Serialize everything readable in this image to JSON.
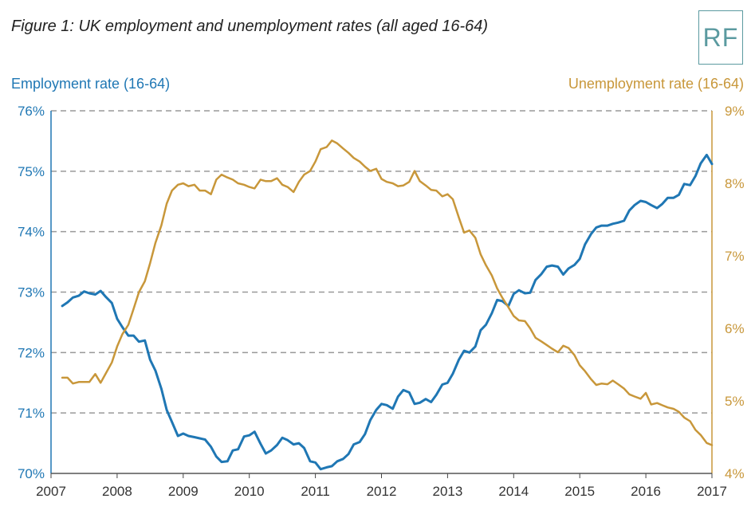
{
  "title": "Figure 1: UK employment and unemployment rates (all aged 16-64)",
  "logo_text": "RF",
  "colors": {
    "employment": "#1f77b4",
    "unemployment": "#c8973a",
    "grid": "#999999",
    "axis": "#1f77b4"
  },
  "chart_data": {
    "type": "line",
    "x_ticks": [
      "2007",
      "2008",
      "2009",
      "2010",
      "2011",
      "2012",
      "2013",
      "2014",
      "2015",
      "2016",
      "2017"
    ],
    "xlim": [
      2007,
      2017
    ],
    "grid": true,
    "left_axis": {
      "label": "Employment rate (16-64)",
      "ylim": [
        70,
        76
      ],
      "ticks": [
        "70%",
        "71%",
        "72%",
        "73%",
        "74%",
        "75%",
        "76%"
      ]
    },
    "right_axis": {
      "label": "Unemployment rate (16-64)",
      "ylim": [
        4,
        9
      ],
      "ticks": [
        "4%",
        "5%",
        "6%",
        "7%",
        "8%",
        "9%"
      ]
    },
    "series": [
      {
        "axis": "left",
        "points": [
          [
            2007.17,
            72.77
          ],
          [
            2007.25,
            72.83
          ],
          [
            2007.33,
            72.91
          ],
          [
            2007.42,
            72.94
          ],
          [
            2007.5,
            73.01
          ],
          [
            2007.58,
            72.98
          ],
          [
            2007.67,
            72.96
          ],
          [
            2007.75,
            73.02
          ],
          [
            2007.83,
            72.92
          ],
          [
            2007.92,
            72.82
          ],
          [
            2008.0,
            72.56
          ],
          [
            2008.08,
            72.42
          ],
          [
            2008.17,
            72.28
          ],
          [
            2008.25,
            72.28
          ],
          [
            2008.33,
            72.18
          ],
          [
            2008.42,
            72.2
          ],
          [
            2008.5,
            71.88
          ],
          [
            2008.58,
            71.7
          ],
          [
            2008.67,
            71.4
          ],
          [
            2008.75,
            71.05
          ],
          [
            2008.83,
            70.85
          ],
          [
            2008.92,
            70.62
          ],
          [
            2009.0,
            70.66
          ],
          [
            2009.08,
            70.62
          ],
          [
            2009.17,
            70.6
          ],
          [
            2009.25,
            70.58
          ],
          [
            2009.33,
            70.56
          ],
          [
            2009.42,
            70.44
          ],
          [
            2009.5,
            70.28
          ],
          [
            2009.58,
            70.19
          ],
          [
            2009.67,
            70.2
          ],
          [
            2009.75,
            70.38
          ],
          [
            2009.83,
            70.4
          ],
          [
            2009.92,
            70.61
          ],
          [
            2010.0,
            70.63
          ],
          [
            2010.08,
            70.69
          ],
          [
            2010.17,
            70.49
          ],
          [
            2010.25,
            70.33
          ],
          [
            2010.33,
            70.38
          ],
          [
            2010.42,
            70.47
          ],
          [
            2010.5,
            70.59
          ],
          [
            2010.58,
            70.55
          ],
          [
            2010.67,
            70.48
          ],
          [
            2010.75,
            70.5
          ],
          [
            2010.83,
            70.42
          ],
          [
            2010.92,
            70.2
          ],
          [
            2011.0,
            70.18
          ],
          [
            2011.08,
            70.07
          ],
          [
            2011.17,
            70.1
          ],
          [
            2011.25,
            70.12
          ],
          [
            2011.33,
            70.2
          ],
          [
            2011.42,
            70.24
          ],
          [
            2011.5,
            70.32
          ],
          [
            2011.58,
            70.48
          ],
          [
            2011.67,
            70.52
          ],
          [
            2011.75,
            70.65
          ],
          [
            2011.83,
            70.88
          ],
          [
            2011.92,
            71.05
          ],
          [
            2012.0,
            71.15
          ],
          [
            2012.08,
            71.13
          ],
          [
            2012.17,
            71.07
          ],
          [
            2012.25,
            71.27
          ],
          [
            2012.33,
            71.38
          ],
          [
            2012.42,
            71.34
          ],
          [
            2012.5,
            71.15
          ],
          [
            2012.58,
            71.17
          ],
          [
            2012.67,
            71.23
          ],
          [
            2012.75,
            71.18
          ],
          [
            2012.83,
            71.3
          ],
          [
            2012.92,
            71.47
          ],
          [
            2013.0,
            71.5
          ],
          [
            2013.08,
            71.65
          ],
          [
            2013.17,
            71.88
          ],
          [
            2013.25,
            72.03
          ],
          [
            2013.33,
            72.0
          ],
          [
            2013.42,
            72.1
          ],
          [
            2013.5,
            72.37
          ],
          [
            2013.58,
            72.46
          ],
          [
            2013.67,
            72.65
          ],
          [
            2013.75,
            72.87
          ],
          [
            2013.83,
            72.85
          ],
          [
            2013.92,
            72.77
          ],
          [
            2014.0,
            72.97
          ],
          [
            2014.08,
            73.03
          ],
          [
            2014.17,
            72.98
          ],
          [
            2014.25,
            72.99
          ],
          [
            2014.33,
            73.2
          ],
          [
            2014.42,
            73.3
          ],
          [
            2014.5,
            73.42
          ],
          [
            2014.58,
            73.44
          ],
          [
            2014.67,
            73.42
          ],
          [
            2014.75,
            73.29
          ],
          [
            2014.83,
            73.39
          ],
          [
            2014.92,
            73.45
          ],
          [
            2015.0,
            73.55
          ],
          [
            2015.08,
            73.79
          ],
          [
            2015.17,
            73.96
          ],
          [
            2015.25,
            74.07
          ],
          [
            2015.33,
            74.1
          ],
          [
            2015.42,
            74.1
          ],
          [
            2015.5,
            74.13
          ],
          [
            2015.58,
            74.15
          ],
          [
            2015.67,
            74.18
          ],
          [
            2015.75,
            74.35
          ],
          [
            2015.83,
            74.44
          ],
          [
            2015.92,
            74.51
          ],
          [
            2016.0,
            74.49
          ],
          [
            2016.08,
            74.44
          ],
          [
            2016.17,
            74.39
          ],
          [
            2016.25,
            74.46
          ],
          [
            2016.33,
            74.56
          ],
          [
            2016.42,
            74.56
          ],
          [
            2016.5,
            74.61
          ],
          [
            2016.58,
            74.79
          ],
          [
            2016.67,
            74.77
          ],
          [
            2016.75,
            74.92
          ],
          [
            2016.83,
            75.13
          ],
          [
            2016.92,
            75.27
          ],
          [
            2017.0,
            75.12
          ]
        ]
      },
      {
        "axis": "right",
        "points": [
          [
            2007.17,
            5.32
          ],
          [
            2007.25,
            5.32
          ],
          [
            2007.33,
            5.24
          ],
          [
            2007.42,
            5.26
          ],
          [
            2007.5,
            5.26
          ],
          [
            2007.58,
            5.26
          ],
          [
            2007.67,
            5.37
          ],
          [
            2007.75,
            5.25
          ],
          [
            2007.83,
            5.38
          ],
          [
            2007.92,
            5.53
          ],
          [
            2008.0,
            5.75
          ],
          [
            2008.08,
            5.92
          ],
          [
            2008.17,
            6.05
          ],
          [
            2008.25,
            6.27
          ],
          [
            2008.33,
            6.5
          ],
          [
            2008.42,
            6.65
          ],
          [
            2008.5,
            6.9
          ],
          [
            2008.58,
            7.18
          ],
          [
            2008.67,
            7.42
          ],
          [
            2008.75,
            7.72
          ],
          [
            2008.83,
            7.9
          ],
          [
            2008.92,
            7.98
          ],
          [
            2009.0,
            8.0
          ],
          [
            2009.08,
            7.96
          ],
          [
            2009.17,
            7.98
          ],
          [
            2009.25,
            7.9
          ],
          [
            2009.33,
            7.9
          ],
          [
            2009.42,
            7.85
          ],
          [
            2009.5,
            8.05
          ],
          [
            2009.58,
            8.12
          ],
          [
            2009.67,
            8.08
          ],
          [
            2009.75,
            8.05
          ],
          [
            2009.83,
            8.0
          ],
          [
            2009.92,
            7.98
          ],
          [
            2010.0,
            7.95
          ],
          [
            2010.08,
            7.93
          ],
          [
            2010.17,
            8.05
          ],
          [
            2010.25,
            8.03
          ],
          [
            2010.33,
            8.03
          ],
          [
            2010.42,
            8.07
          ],
          [
            2010.5,
            7.98
          ],
          [
            2010.58,
            7.95
          ],
          [
            2010.67,
            7.88
          ],
          [
            2010.75,
            8.02
          ],
          [
            2010.83,
            8.12
          ],
          [
            2010.92,
            8.17
          ],
          [
            2011.0,
            8.3
          ],
          [
            2011.08,
            8.47
          ],
          [
            2011.17,
            8.5
          ],
          [
            2011.25,
            8.59
          ],
          [
            2011.33,
            8.55
          ],
          [
            2011.42,
            8.48
          ],
          [
            2011.5,
            8.42
          ],
          [
            2011.58,
            8.35
          ],
          [
            2011.67,
            8.3
          ],
          [
            2011.75,
            8.23
          ],
          [
            2011.83,
            8.17
          ],
          [
            2011.92,
            8.2
          ],
          [
            2012.0,
            8.06
          ],
          [
            2012.08,
            8.02
          ],
          [
            2012.17,
            8.0
          ],
          [
            2012.25,
            7.96
          ],
          [
            2012.33,
            7.97
          ],
          [
            2012.42,
            8.02
          ],
          [
            2012.5,
            8.17
          ],
          [
            2012.58,
            8.03
          ],
          [
            2012.67,
            7.97
          ],
          [
            2012.75,
            7.91
          ],
          [
            2012.83,
            7.9
          ],
          [
            2012.92,
            7.82
          ],
          [
            2013.0,
            7.85
          ],
          [
            2013.08,
            7.78
          ],
          [
            2013.17,
            7.53
          ],
          [
            2013.25,
            7.32
          ],
          [
            2013.33,
            7.35
          ],
          [
            2013.42,
            7.25
          ],
          [
            2013.5,
            7.02
          ],
          [
            2013.58,
            6.87
          ],
          [
            2013.67,
            6.73
          ],
          [
            2013.75,
            6.55
          ],
          [
            2013.83,
            6.42
          ],
          [
            2013.92,
            6.29
          ],
          [
            2014.0,
            6.17
          ],
          [
            2014.08,
            6.11
          ],
          [
            2014.17,
            6.1
          ],
          [
            2014.25,
            6.0
          ],
          [
            2014.33,
            5.87
          ],
          [
            2014.42,
            5.82
          ],
          [
            2014.5,
            5.77
          ],
          [
            2014.58,
            5.72
          ],
          [
            2014.67,
            5.67
          ],
          [
            2014.75,
            5.76
          ],
          [
            2014.83,
            5.73
          ],
          [
            2014.92,
            5.63
          ],
          [
            2015.0,
            5.49
          ],
          [
            2015.08,
            5.41
          ],
          [
            2015.17,
            5.3
          ],
          [
            2015.25,
            5.22
          ],
          [
            2015.33,
            5.24
          ],
          [
            2015.42,
            5.23
          ],
          [
            2015.5,
            5.28
          ],
          [
            2015.58,
            5.23
          ],
          [
            2015.67,
            5.17
          ],
          [
            2015.75,
            5.09
          ],
          [
            2015.83,
            5.06
          ],
          [
            2015.92,
            5.03
          ],
          [
            2016.0,
            5.11
          ],
          [
            2016.08,
            4.95
          ],
          [
            2016.17,
            4.97
          ],
          [
            2016.25,
            4.94
          ],
          [
            2016.33,
            4.91
          ],
          [
            2016.42,
            4.89
          ],
          [
            2016.5,
            4.85
          ],
          [
            2016.58,
            4.77
          ],
          [
            2016.67,
            4.72
          ],
          [
            2016.75,
            4.6
          ],
          [
            2016.83,
            4.53
          ],
          [
            2016.92,
            4.42
          ],
          [
            2017.0,
            4.39
          ]
        ]
      }
    ]
  }
}
